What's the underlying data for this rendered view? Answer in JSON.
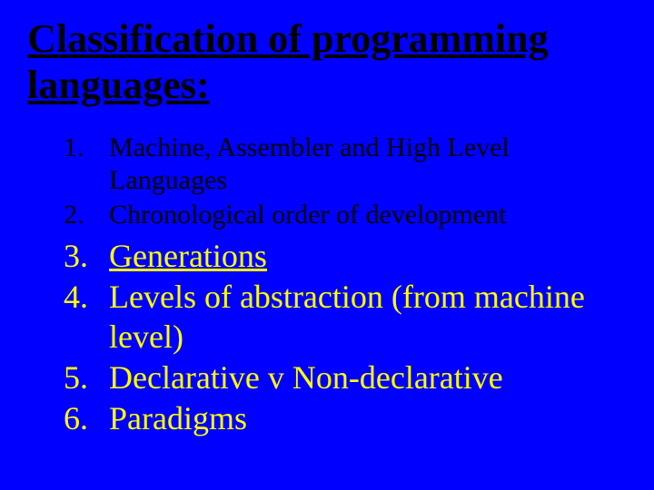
{
  "slide": {
    "title": "Classification of programming languages:",
    "background_color": "#0000ff",
    "title_color": "#000000",
    "title_fontsize": 44,
    "title_font_weight": "bold",
    "title_underline": true,
    "items": [
      {
        "text": "Machine, Assembler and High Level Languages",
        "size": "small",
        "color": "#000000",
        "fontsize": 30,
        "underline": false
      },
      {
        "text": "Chronological order of development",
        "size": "small",
        "color": "#000000",
        "fontsize": 30,
        "underline": false
      },
      {
        "text": "Generations",
        "size": "large",
        "color": "#ffff00",
        "fontsize": 36,
        "underline": true
      },
      {
        "text": "Levels of abstraction (from machine level)",
        "size": "large",
        "color": "#ffff00",
        "fontsize": 36,
        "underline": false
      },
      {
        "text": "Declarative v Non-declarative",
        "size": "large",
        "color": "#ffff00",
        "fontsize": 36,
        "underline": false
      },
      {
        "text": "Paradigms",
        "size": "large",
        "color": "#ffff00",
        "fontsize": 36,
        "underline": false
      }
    ]
  }
}
